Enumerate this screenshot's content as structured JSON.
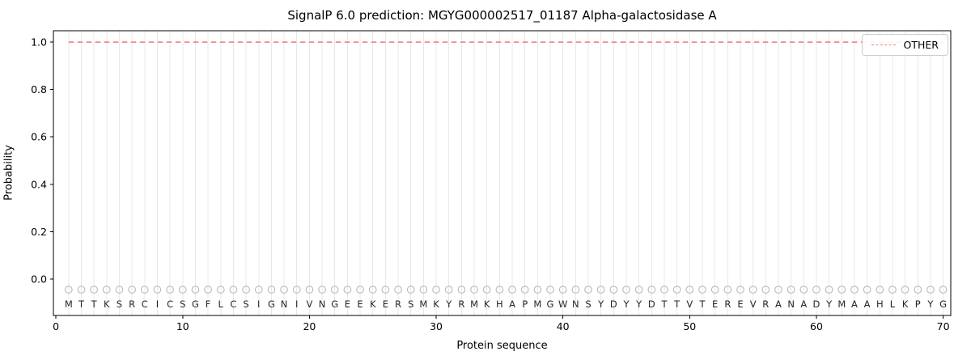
{
  "page": {
    "title": "SignalP 6.0 prediction: MGYG000002517_01187 Alpha-galactosidase A"
  },
  "chart_data": {
    "type": "line",
    "title": "SignalP 6.0 prediction: MGYG000002517_01187 Alpha-galactosidase A",
    "xlabel": "Protein sequence",
    "ylabel": "Probability",
    "xlim": [
      -0.2,
      70.6
    ],
    "ylim": [
      -0.154,
      1.048
    ],
    "x_ticks": [
      0,
      10,
      20,
      30,
      40,
      50,
      60,
      70
    ],
    "y_ticks": [
      0.0,
      0.2,
      0.4,
      0.6,
      0.8,
      1.0
    ],
    "grid": "light vertical gridline at every residue position, grid on",
    "legend": {
      "position": "upper right",
      "entries": [
        {
          "label": "OTHER",
          "style": "dashed",
          "color": "#f08080"
        }
      ]
    },
    "series": [
      {
        "name": "OTHER",
        "type": "constant-line",
        "y": 1.0,
        "x_start": 1,
        "x_end": 70,
        "color": "#f08080",
        "linestyle": "dashed"
      }
    ],
    "sequence": "MTTKSRCICSGFLCSIGNIVNGEEKERSMKYRMKHAPMGWNSYDYYDTTVTEREVRANADYMAAHLKPYG",
    "sequence_length": 70,
    "sequence_marker": {
      "glyph": "open-circle",
      "y": -0.045
    },
    "letter_y": -0.105
  },
  "colors": {
    "other_line": "#f08080",
    "grid": "#e8e8e8",
    "marker": "#b8b8b8",
    "letters": "#262626",
    "spine": "#000000",
    "background": "#ffffff"
  }
}
